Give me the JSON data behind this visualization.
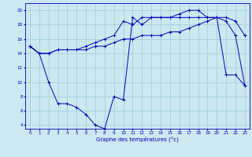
{
  "xlabel": "Graphe des températures (°c)",
  "bg_color": "#cce8f0",
  "grid_color": "#99ccdd",
  "line_color": "#0000bb",
  "ylim": [
    3.5,
    21
  ],
  "xlim": [
    -0.5,
    23.5
  ],
  "yticks": [
    4,
    6,
    8,
    10,
    12,
    14,
    16,
    18,
    20
  ],
  "xticks": [
    0,
    1,
    2,
    3,
    4,
    5,
    6,
    7,
    8,
    9,
    10,
    11,
    12,
    13,
    14,
    15,
    16,
    17,
    18,
    19,
    20,
    21,
    22,
    23
  ],
  "line1_x": [
    0,
    1,
    2,
    3,
    4,
    5,
    6,
    7,
    8,
    9,
    10,
    11,
    12,
    13,
    14,
    15,
    16,
    17,
    18,
    19,
    20,
    21,
    22,
    23
  ],
  "line1_y": [
    15,
    14,
    14,
    14.5,
    14.5,
    14.5,
    14.5,
    15,
    15,
    15.5,
    16,
    16,
    16.5,
    16.5,
    16.5,
    17,
    17,
    17.5,
    18,
    18.5,
    19,
    19,
    18.5,
    16.5
  ],
  "line2_x": [
    0,
    1,
    2,
    3,
    4,
    5,
    6,
    7,
    8,
    9,
    10,
    11,
    12,
    13,
    14,
    15,
    16,
    17,
    18,
    19,
    20,
    21,
    22,
    23
  ],
  "line2_y": [
    15,
    14,
    14,
    14.5,
    14.5,
    14.5,
    15,
    15.5,
    16,
    16.5,
    18.5,
    18,
    19,
    19,
    19,
    19,
    19.5,
    20,
    20,
    19,
    19,
    18.5,
    16.5,
    9.5
  ],
  "line3_x": [
    0,
    1,
    2,
    3,
    4,
    5,
    6,
    7,
    8,
    9,
    10,
    11,
    12,
    13,
    14,
    15,
    16,
    17,
    18,
    19,
    20,
    21,
    22,
    23
  ],
  "line3_y": [
    15,
    14,
    10,
    7,
    7,
    6.5,
    5.5,
    4,
    3.5,
    8,
    7.5,
    19,
    18,
    19,
    19,
    19,
    19,
    19,
    19,
    19,
    19,
    11,
    11,
    9.5
  ]
}
